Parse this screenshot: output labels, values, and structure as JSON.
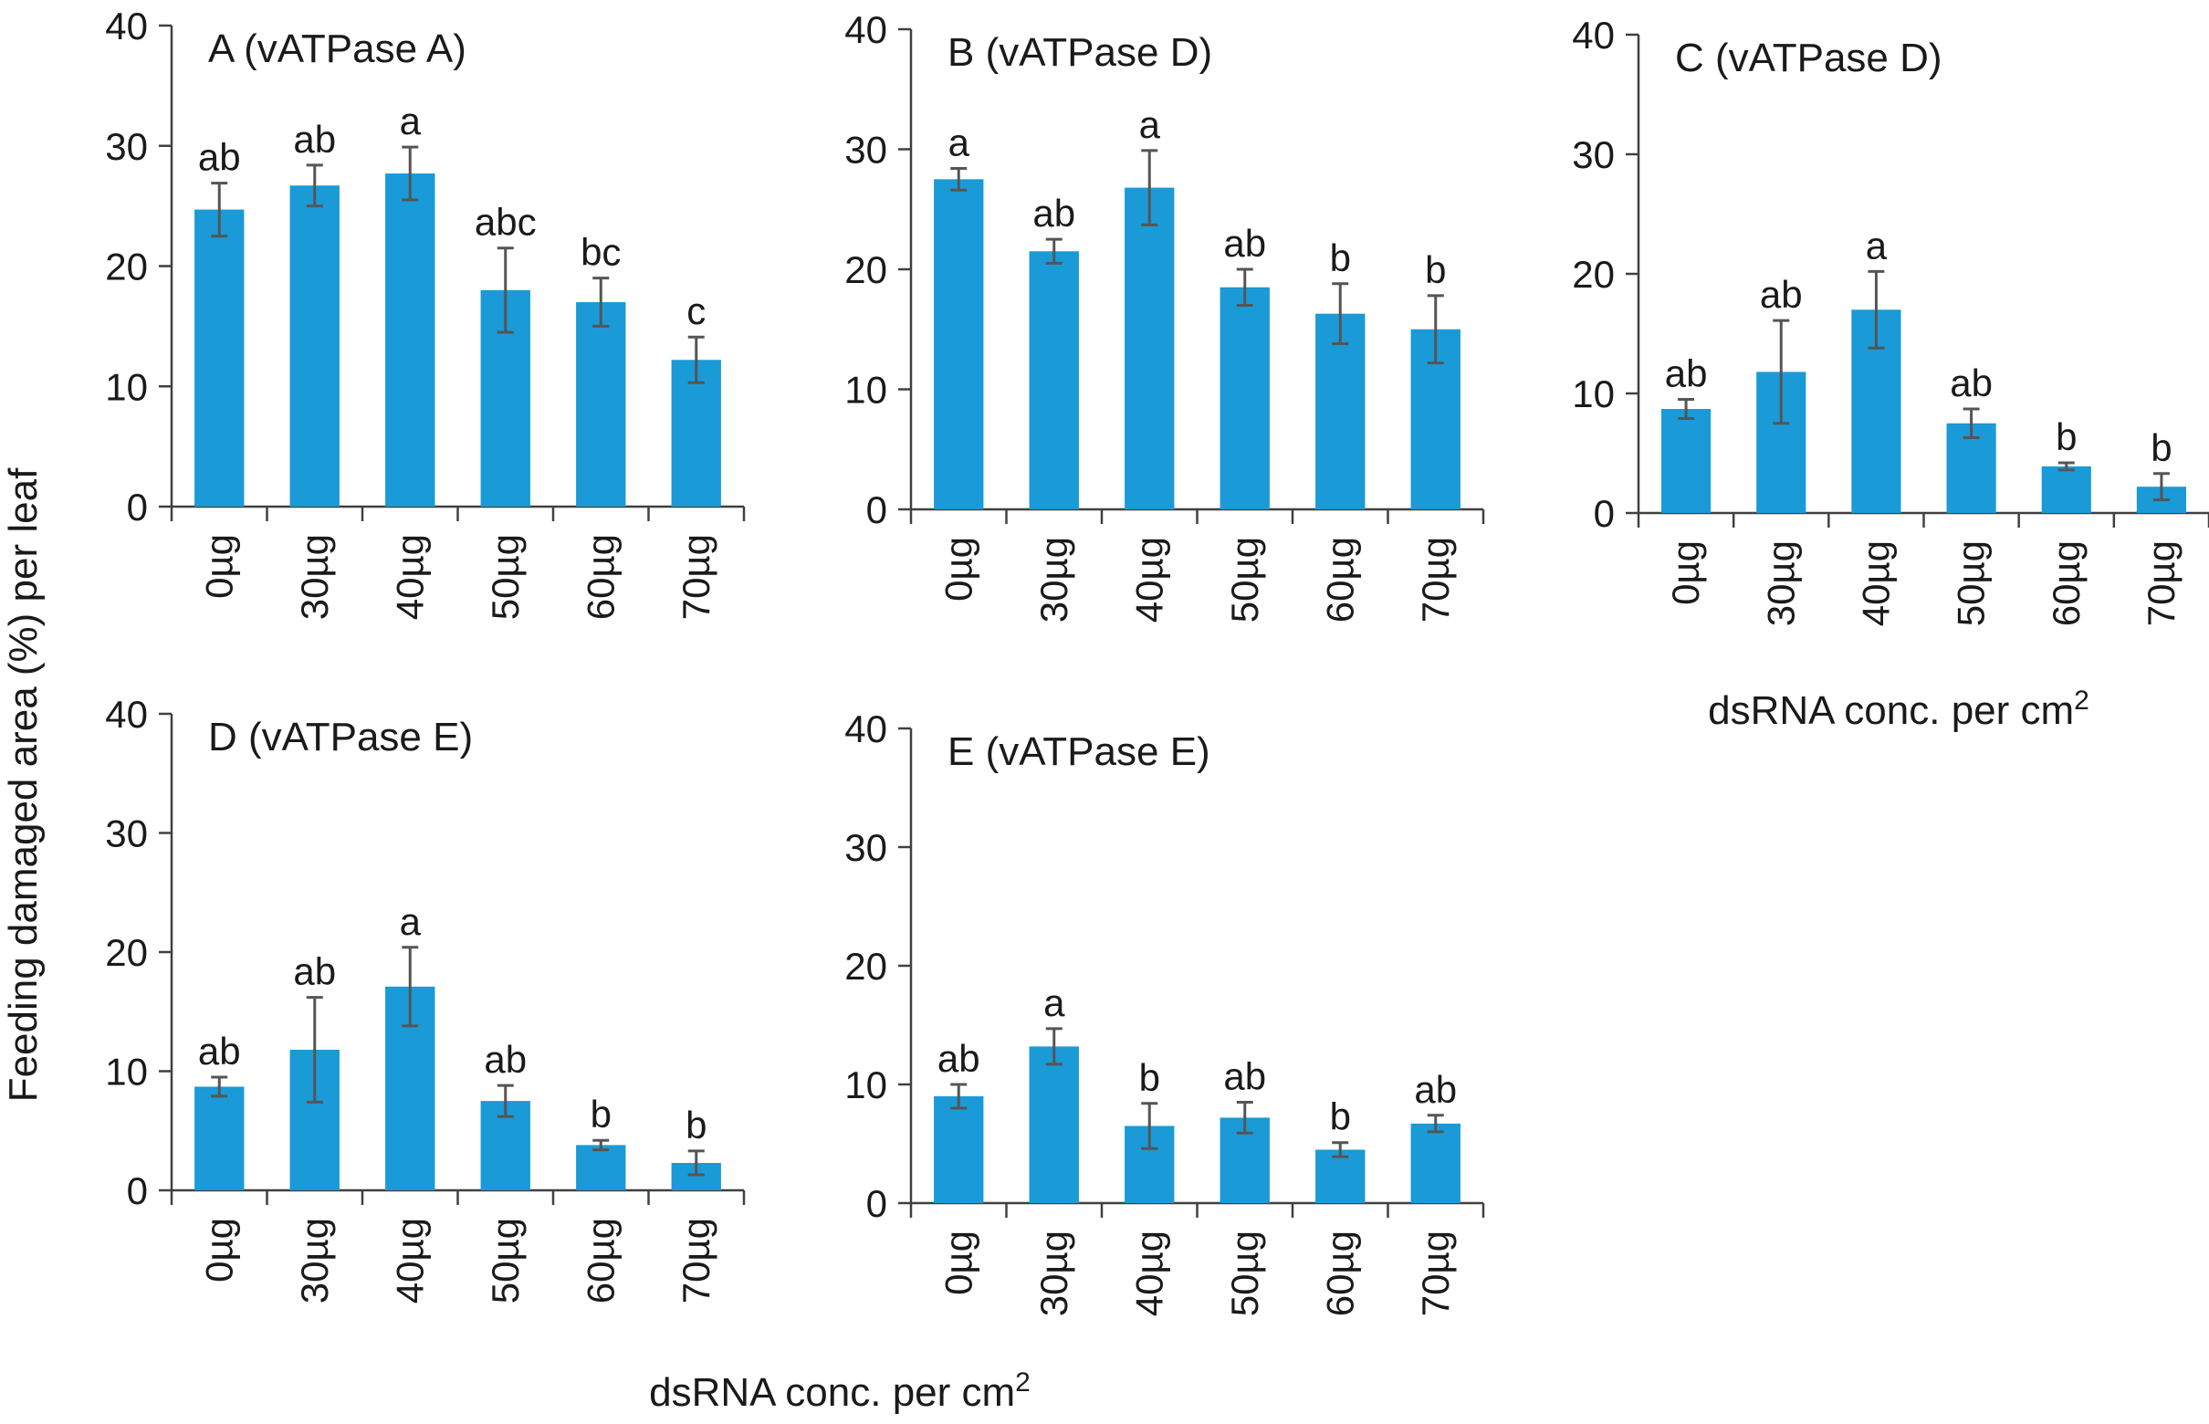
{
  "figure": {
    "ylabel": "Feeding damaged area (%) per leaf",
    "xlabel_prefix": "dsRNA conc. per cm",
    "xlabel_superscript": "2",
    "bar_color": "#1a9ad6",
    "error_color": "#555555"
  },
  "chart_data": [
    {
      "type": "bar",
      "title": "A (vATPase A)",
      "categories": [
        "0µg",
        "30µg",
        "40µg",
        "50µg",
        "60µg",
        "70µg"
      ],
      "values": [
        24.7,
        26.7,
        27.7,
        18.0,
        17.0,
        12.2
      ],
      "errors": [
        2.2,
        1.7,
        2.2,
        3.5,
        2.0,
        1.9
      ],
      "letters": [
        "ab",
        "ab",
        "a",
        "abc",
        "bc",
        "c"
      ],
      "yticks": [
        0,
        10,
        20,
        30,
        40
      ],
      "ylim": [
        0,
        40
      ],
      "xlabel": ""
    },
    {
      "type": "bar",
      "title": "B (vATPase D)",
      "categories": [
        "0µg",
        "30µg",
        "40µg",
        "50µg",
        "60µg",
        "70µg"
      ],
      "values": [
        27.5,
        21.5,
        26.8,
        18.5,
        16.3,
        15.0
      ],
      "errors": [
        0.9,
        1.0,
        3.1,
        1.5,
        2.5,
        2.8
      ],
      "letters": [
        "a",
        "ab",
        "a",
        "ab",
        "b",
        "b"
      ],
      "yticks": [
        0,
        10,
        20,
        30,
        40
      ],
      "ylim": [
        0,
        40
      ],
      "xlabel": ""
    },
    {
      "type": "bar",
      "title": "C (vATPase D)",
      "categories": [
        "0µg",
        "30µg",
        "40µg",
        "50µg",
        "60µg",
        "70µg"
      ],
      "values": [
        8.7,
        11.8,
        17.0,
        7.5,
        3.9,
        2.2
      ],
      "errors": [
        0.8,
        4.3,
        3.2,
        1.2,
        0.3,
        1.1
      ],
      "letters": [
        "ab",
        "ab",
        "a",
        "ab",
        "b",
        "b"
      ],
      "yticks": [
        0,
        10,
        20,
        30,
        40
      ],
      "ylim": [
        0,
        40
      ],
      "xlabel": "dsRNA conc. per cm2"
    },
    {
      "type": "bar",
      "title": "D (vATPase E)",
      "categories": [
        "0µg",
        "30µg",
        "40µg",
        "50µg",
        "60µg",
        "70µg"
      ],
      "values": [
        8.7,
        11.8,
        17.1,
        7.5,
        3.8,
        2.3
      ],
      "errors": [
        0.8,
        4.4,
        3.3,
        1.3,
        0.4,
        1.0
      ],
      "letters": [
        "ab",
        "ab",
        "a",
        "ab",
        "b",
        "b"
      ],
      "yticks": [
        0,
        10,
        20,
        30,
        40
      ],
      "ylim": [
        0,
        40
      ],
      "xlabel": ""
    },
    {
      "type": "bar",
      "title": "E (vATPase E)",
      "categories": [
        "0µg",
        "30µg",
        "40µg",
        "50µg",
        "60µg",
        "70µg"
      ],
      "values": [
        9.0,
        13.2,
        6.5,
        7.2,
        4.5,
        6.7
      ],
      "errors": [
        1.0,
        1.5,
        1.9,
        1.3,
        0.6,
        0.7
      ],
      "letters": [
        "ab",
        "a",
        "b",
        "ab",
        "b",
        "ab"
      ],
      "yticks": [
        0,
        10,
        20,
        30,
        40
      ],
      "ylim": [
        0,
        40
      ],
      "xlabel": ""
    }
  ]
}
